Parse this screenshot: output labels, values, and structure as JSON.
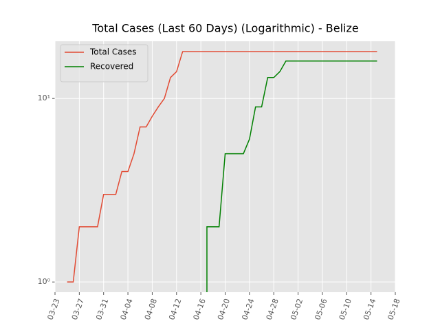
{
  "chart_data": {
    "type": "line",
    "title": "Total Cases (Last 60 Days) (Logarithmic) - Belize",
    "x": [
      "03-25",
      "03-26",
      "03-27",
      "03-28",
      "03-29",
      "03-30",
      "03-31",
      "04-01",
      "04-02",
      "04-03",
      "04-04",
      "04-05",
      "04-06",
      "04-07",
      "04-08",
      "04-09",
      "04-10",
      "04-11",
      "04-12",
      "04-13",
      "04-14",
      "04-15",
      "04-16",
      "04-17",
      "04-18",
      "04-19",
      "04-20",
      "04-21",
      "04-22",
      "04-23",
      "04-24",
      "04-25",
      "04-26",
      "04-27",
      "04-28",
      "04-29",
      "04-30",
      "05-01",
      "05-02",
      "05-03",
      "05-04",
      "05-05",
      "05-06",
      "05-07",
      "05-08",
      "05-09",
      "05-10",
      "05-11",
      "05-12",
      "05-13",
      "05-14",
      "05-15"
    ],
    "series": [
      {
        "name": "Total Cases",
        "color": "#e24a33",
        "values": [
          1,
          1,
          2,
          2,
          2,
          2,
          3,
          3,
          3,
          4,
          4,
          5,
          7,
          7,
          8,
          9,
          10,
          13,
          14,
          18,
          18,
          18,
          18,
          18,
          18,
          18,
          18,
          18,
          18,
          18,
          18,
          18,
          18,
          18,
          18,
          18,
          18,
          18,
          18,
          18,
          18,
          18,
          18,
          18,
          18,
          18,
          18,
          18,
          18,
          18,
          18,
          18
        ]
      },
      {
        "name": "Recovered",
        "color": "#008000",
        "values": [
          null,
          null,
          null,
          null,
          null,
          null,
          null,
          null,
          null,
          null,
          null,
          null,
          null,
          null,
          null,
          null,
          null,
          null,
          null,
          null,
          null,
          null,
          0,
          2,
          2,
          2,
          5,
          5,
          5,
          5,
          6,
          9,
          9,
          13,
          13,
          14,
          16,
          16,
          16,
          16,
          16,
          16,
          16,
          16,
          16,
          16,
          16,
          16,
          16,
          16,
          16,
          16
        ]
      }
    ],
    "xlim": [
      "03-23",
      "05-18"
    ],
    "xticks": [
      "03-23",
      "03-27",
      "03-31",
      "04-04",
      "04-08",
      "04-12",
      "04-16",
      "04-20",
      "04-24",
      "04-28",
      "05-02",
      "05-06",
      "05-10",
      "05-14",
      "05-18"
    ],
    "ylim": [
      0.88,
      20.5
    ],
    "yticks": [
      {
        "value": 1,
        "label": "10⁰"
      },
      {
        "value": 10,
        "label": "10¹"
      }
    ],
    "log_y": true,
    "grid": true,
    "legend": "upper left"
  }
}
